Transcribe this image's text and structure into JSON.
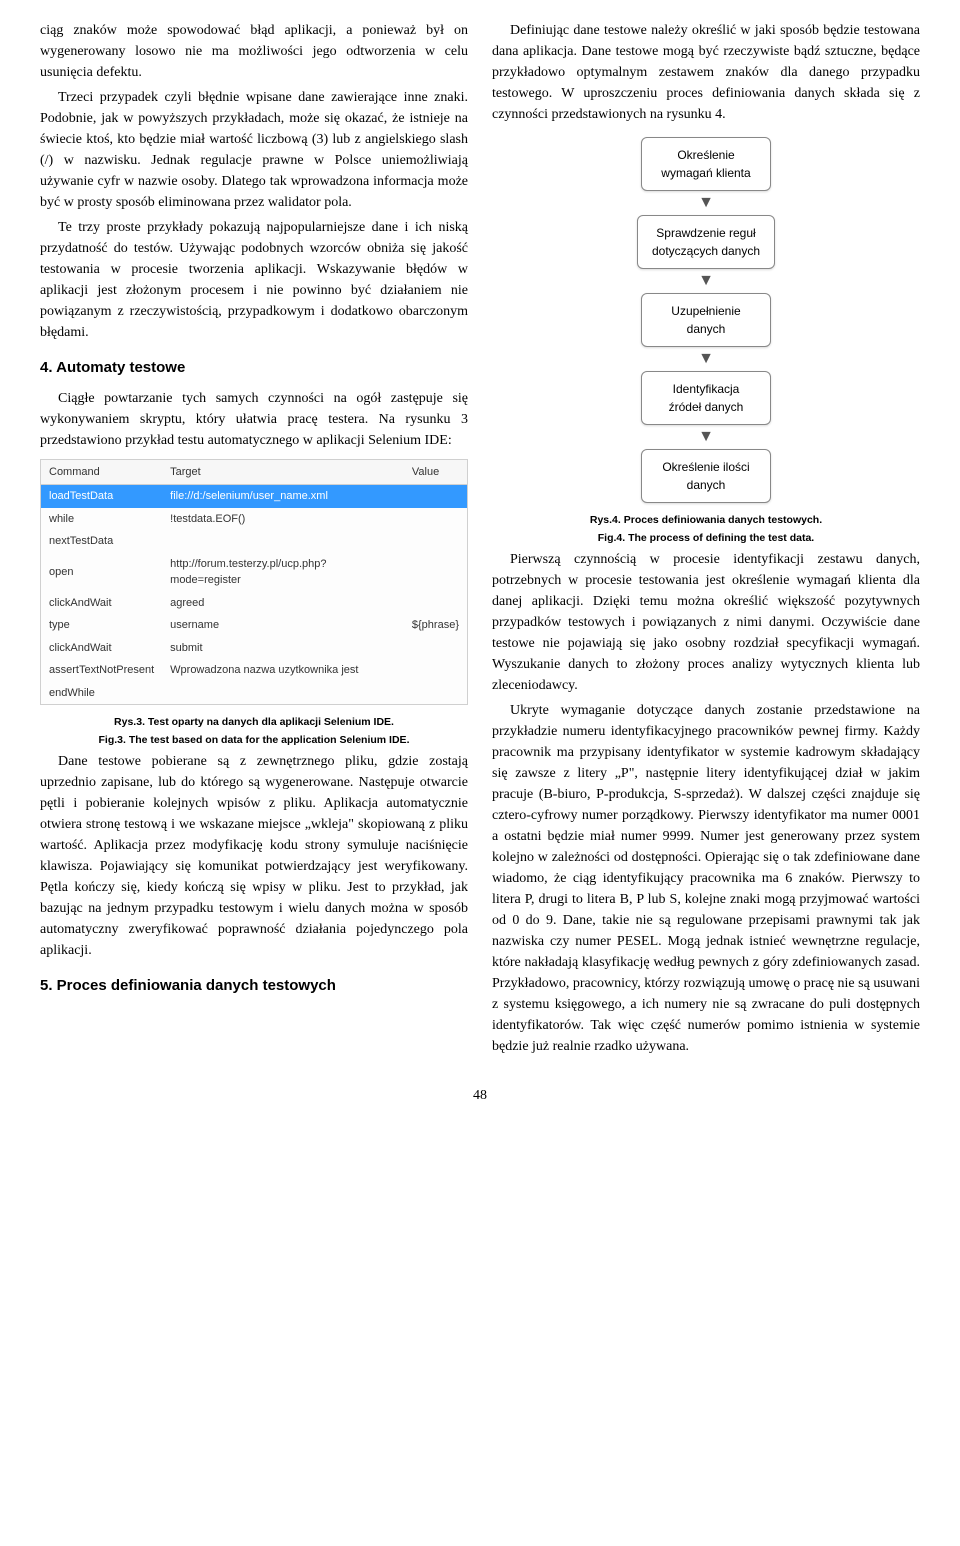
{
  "left": {
    "p1": "ciąg znaków może spowodować błąd aplikacji, a ponieważ był on wygenerowany losowo nie ma możliwości jego odtworzenia w celu usunięcia defektu.",
    "p2": "Trzeci przypadek czyli błędnie wpisane dane zawierające inne znaki. Podobnie, jak w powyższych przykładach, może się okazać, że istnieje na świecie ktoś, kto będzie miał wartość liczbową (3) lub z angielskiego slash (/) w nazwisku. Jednak regulacje prawne w Polsce uniemożliwiają używanie cyfr w nazwie osoby. Dlatego tak wprowadzona informacja może być w prosty sposób eliminowana przez walidator pola.",
    "p3": "Te trzy proste przykłady pokazują najpopularniejsze dane i ich niską przydatność do testów. Używając podobnych wzorców obniża się jakość testowania w procesie tworzenia aplikacji. Wskazywanie błędów w aplikacji jest złożonym procesem i nie powinno być działaniem nie powiązanym z rzeczywistością, przypadkowym i dodatkowo obarczonym błędami.",
    "h4": "4. Automaty testowe",
    "p4": "Ciągłe powtarzanie tych samych czynności na ogół zastępuje się wykonywaniem skryptu, który ułatwia pracę testera. Na rysunku 3 przedstawiono przykład testu automatycznego w aplikacji Selenium IDE:",
    "table": {
      "headers": [
        "Command",
        "Target",
        "Value"
      ],
      "rows": [
        {
          "sel": true,
          "c": [
            "loadTestData",
            "file://d:/selenium/user_name.xml",
            ""
          ]
        },
        {
          "sel": false,
          "c": [
            "while",
            "!testdata.EOF()",
            ""
          ]
        },
        {
          "sel": false,
          "c": [
            "nextTestData",
            "",
            ""
          ]
        },
        {
          "sel": false,
          "c": [
            "open",
            "http://forum.testerzy.pl/ucp.php?mode=register",
            ""
          ]
        },
        {
          "sel": false,
          "c": [
            "clickAndWait",
            "agreed",
            ""
          ]
        },
        {
          "sel": false,
          "c": [
            "type",
            "username",
            "${phrase}"
          ]
        },
        {
          "sel": false,
          "c": [
            "clickAndWait",
            "submit",
            ""
          ]
        },
        {
          "sel": false,
          "c": [
            "assertTextNotPresent",
            "Wprowadzona nazwa uzytkownika jest",
            ""
          ]
        },
        {
          "sel": false,
          "c": [
            "endWhile",
            "",
            ""
          ]
        }
      ]
    },
    "cap3a": "Rys.3. Test oparty na danych dla aplikacji Selenium IDE.",
    "cap3b": "Fig.3. The test based on data for the application Selenium IDE.",
    "p5": "Dane testowe pobierane są z zewnętrznego pliku, gdzie zostają uprzednio zapisane, lub do którego są wygenerowane. Następuje otwarcie pętli i pobieranie kolejnych wpisów z pliku. Aplikacja automatycznie otwiera stronę testową i we wskazane miejsce „wkleja\" skopiowaną z pliku wartość. Aplikacja przez modyfikację kodu strony symuluje naciśnięcie klawisza. Pojawiający się komunikat potwierdzający jest weryfikowany. Pętla kończy się, kiedy kończą się wpisy w pliku. Jest to przykład, jak bazując na jednym przypadku testowym i wielu danych można w sposób automatyczny zweryfikować poprawność działania pojedynczego pola aplikacji.",
    "h5": "5. Proces definiowania danych testowych"
  },
  "right": {
    "p1": "Definiując dane testowe należy określić w jaki sposób będzie testowana dana aplikacja. Dane testowe mogą być rzeczywiste bądź sztuczne, będące przykładowo optymalnym zestawem znaków dla danego przypadku testowego. W uproszczeniu proces definiowania danych składa się z czynności przedstawionych na rysunku 4.",
    "flow": {
      "nodes": [
        "Określenie\nwymagań klienta",
        "Sprawdzenie reguł\ndotyczących danych",
        "Uzupełnienie\ndanych",
        "Identyfikacja\nźródeł danych",
        "Określenie ilości\ndanych"
      ],
      "node_bg": "#ffffff",
      "node_border": "#888888",
      "arrow_color": "#555555"
    },
    "cap4a": "Rys.4. Proces definiowania danych testowych.",
    "cap4b": "Fig.4. The process of defining the test data.",
    "p2": "Pierwszą czynnością w procesie identyfikacji zestawu danych, potrzebnych w procesie testowania jest określenie wymagań klienta dla danej aplikacji. Dzięki temu można określić większość pozytywnych przypadków testowych i powiązanych z nimi danymi. Oczywiście dane testowe nie pojawiają się jako osobny rozdział specyfikacji wymagań. Wyszukanie danych to złożony proces analizy wytycznych klienta lub zleceniodawcy.",
    "p3": "Ukryte wymaganie dotyczące danych zostanie przedstawione na przykładzie numeru identyfikacyjnego pracowników pewnej firmy. Każdy pracownik ma przypisany identyfikator w systemie kadrowym składający się zawsze z litery „P\", następnie litery identyfikującej dział w jakim pracuje (B-biuro, P-produkcja, S-sprzedaż). W dalszej części znajduje się cztero-cyfrowy numer porządkowy. Pierwszy identyfikator ma numer 0001 a ostatni będzie miał numer 9999. Numer jest generowany przez system kolejno w zależności od dostępności. Opierając się o tak zdefiniowane dane wiadomo, że ciąg identyfikujący pracownika ma 6 znaków. Pierwszy to litera P, drugi to litera B, P lub S, kolejne znaki mogą przyjmować wartości od 0 do 9. Dane, takie nie są regulowane przepisami prawnymi tak jak nazwiska czy numer PESEL. Mogą jednak istnieć wewnętrzne regulacje, które nakładają klasyfikację według pewnych z góry zdefiniowanych zasad. Przykładowo, pracownicy, którzy rozwiązują umowę o pracę nie są usuwani z systemu księgowego, a ich numery nie są zwracane do puli dostępnych identyfikatorów. Tak więc część numerów pomimo istnienia w systemie będzie już realnie rzadko używana."
  },
  "page": "48"
}
